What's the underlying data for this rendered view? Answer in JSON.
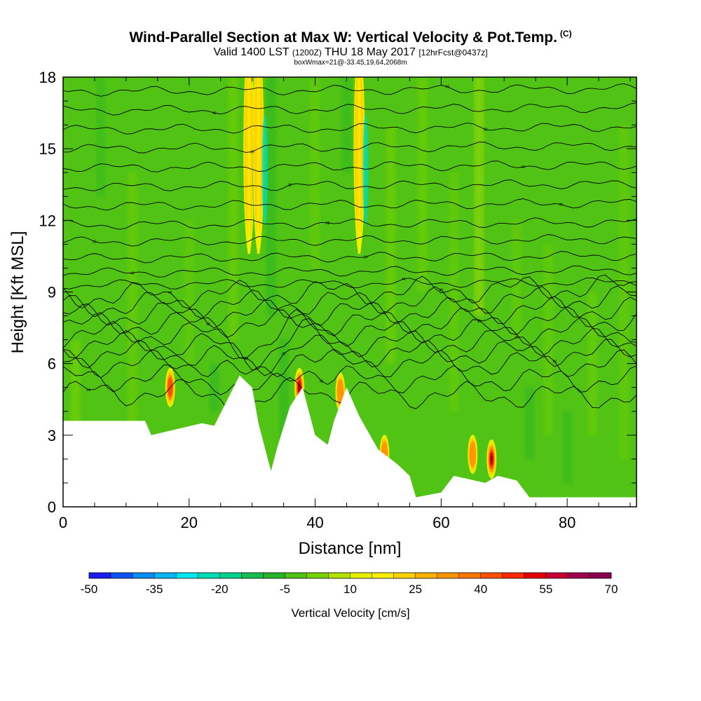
{
  "title": {
    "line1": "Wind-Parallel Section at Max W: Vertical Velocity & Pot.Temp.",
    "line1_mark": "(C)",
    "line2_a": "Valid 1400 LST",
    "line2_b": "(1200Z)",
    "line2_c": "THU 18 May 2017",
    "line2_d": "[12hrFcst@0437z]",
    "line3": "boxWmax=21@-33.45,19.64,2068m"
  },
  "chart_data": {
    "type": "heatmap",
    "xlabel": "Distance [nm]",
    "ylabel": "Height [Kft MSL]",
    "xlim": [
      0,
      91
    ],
    "ylim": [
      0,
      18
    ],
    "x_ticks": [
      0,
      20,
      40,
      60,
      80
    ],
    "y_ticks": [
      0,
      3,
      6,
      9,
      12,
      15,
      18
    ],
    "colorbar": {
      "title": "Vertical Velocity [cm/s]",
      "range": [
        -50,
        70
      ],
      "tick_labels": [
        "-50",
        "-35",
        "-20",
        "-5",
        "10",
        "25",
        "40",
        "55",
        "70"
      ],
      "colors": [
        "#1c1cf0",
        "#0e55f5",
        "#0a8cf5",
        "#0ab4f5",
        "#00e6f0",
        "#00dcb4",
        "#00d28c",
        "#14be50",
        "#28b428",
        "#50c314",
        "#78d200",
        "#b4e100",
        "#e6f000",
        "#fff000",
        "#ffd200",
        "#ffb400",
        "#ff9600",
        "#ff7800",
        "#ff5000",
        "#ff2800",
        "#e60000",
        "#c80032",
        "#a00050",
        "#8c0050"
      ]
    },
    "background_level": "-5 to 5 cm/s (green)",
    "terrain_profile": {
      "x": [
        0,
        13,
        14,
        22,
        24,
        28,
        30,
        31,
        33,
        34,
        36,
        38,
        40,
        42,
        43,
        45,
        47,
        50,
        53,
        55,
        56,
        60,
        62,
        67,
        69,
        72,
        74,
        79,
        84,
        91
      ],
      "height": [
        3.6,
        3.6,
        3.0,
        3.5,
        3.4,
        5.5,
        5.0,
        3.5,
        1.5,
        2.5,
        4.2,
        5.0,
        3.0,
        2.6,
        3.6,
        5.0,
        3.8,
        2.4,
        1.8,
        1.3,
        0.4,
        0.6,
        1.3,
        1.0,
        1.3,
        1.1,
        0.4,
        0.4,
        0.4,
        0.4
      ]
    },
    "updraft_cores": [
      {
        "x": 17,
        "height": 5.0,
        "w": 45
      },
      {
        "x": 29.5,
        "height": 14,
        "w": 20
      },
      {
        "x": 31,
        "height": 15,
        "w": 20
      },
      {
        "x": 37.5,
        "height": 5.0,
        "w": 60
      },
      {
        "x": 47,
        "height": 16,
        "w": 20
      },
      {
        "x": 44,
        "height": 4.8,
        "w": 35
      },
      {
        "x": 51,
        "height": 2.2,
        "w": 30
      },
      {
        "x": 68,
        "height": 2.0,
        "w": 60
      },
      {
        "x": 65,
        "height": 2.2,
        "w": 30
      }
    ],
    "isentrope_heights": [
      4.8,
      5.4,
      6.0,
      6.4,
      6.8,
      7.2,
      7.6,
      8.0,
      8.4,
      8.8,
      9.3,
      9.8,
      10.4,
      11.1,
      11.8,
      12.6,
      13.4,
      14.2,
      15.0,
      15.8,
      16.6,
      17.4
    ],
    "isentrope_labels": [
      "24",
      "26",
      "28",
      "30",
      "32",
      "34",
      "36",
      "38",
      "40",
      "42",
      "44",
      "46"
    ]
  }
}
